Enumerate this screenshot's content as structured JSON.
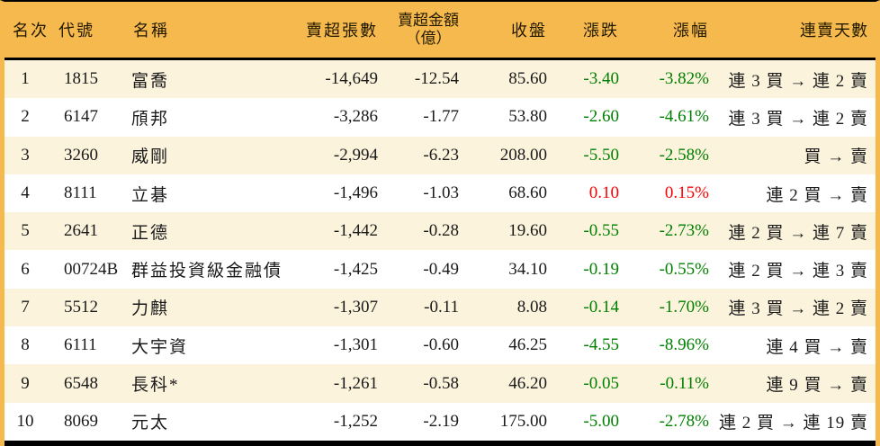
{
  "colors": {
    "accent": "#F6B94D",
    "row_alt": "#FCF3DC",
    "border": "#000000",
    "text": "#1a1a1a",
    "header_text": "#221a00",
    "down": "#008000",
    "up": "#ff0000"
  },
  "table": {
    "columns": [
      {
        "key": "rank",
        "label": "名次"
      },
      {
        "key": "code",
        "label": "代號"
      },
      {
        "key": "name",
        "label": "名稱"
      },
      {
        "key": "vol",
        "label": "賣超張數"
      },
      {
        "key": "amt",
        "label": "賣超金額\n（億）"
      },
      {
        "key": "close",
        "label": "收盤"
      },
      {
        "key": "chg",
        "label": "漲跌"
      },
      {
        "key": "pct",
        "label": "漲幅"
      },
      {
        "key": "streak",
        "label": "連賣天數"
      }
    ],
    "rows": [
      {
        "rank": "1",
        "code": "1815",
        "name": "富喬",
        "vol": "-14,649",
        "amt": "-12.54",
        "close": "85.60",
        "chg": "-3.40",
        "pct": "-3.82%",
        "streak": "連 3 買 → 連 2 賣"
      },
      {
        "rank": "2",
        "code": "6147",
        "name": "頎邦",
        "vol": "-3,286",
        "amt": "-1.77",
        "close": "53.80",
        "chg": "-2.60",
        "pct": "-4.61%",
        "streak": "連 3 買 → 連 2 賣"
      },
      {
        "rank": "3",
        "code": "3260",
        "name": "威剛",
        "vol": "-2,994",
        "amt": "-6.23",
        "close": "208.00",
        "chg": "-5.50",
        "pct": "-2.58%",
        "streak": "買 → 賣"
      },
      {
        "rank": "4",
        "code": "8111",
        "name": "立碁",
        "vol": "-1,496",
        "amt": "-1.03",
        "close": "68.60",
        "chg": "0.10",
        "pct": "0.15%",
        "streak": "連 2 買 → 賣"
      },
      {
        "rank": "5",
        "code": "2641",
        "name": "正德",
        "vol": "-1,442",
        "amt": "-0.28",
        "close": "19.60",
        "chg": "-0.55",
        "pct": "-2.73%",
        "streak": "連 2 買 → 連 7 賣"
      },
      {
        "rank": "6",
        "code": "00724B",
        "name": "群益投資級金融債",
        "vol": "-1,425",
        "amt": "-0.49",
        "close": "34.10",
        "chg": "-0.19",
        "pct": "-0.55%",
        "streak": "連 2 買 → 連 3 賣"
      },
      {
        "rank": "7",
        "code": "5512",
        "name": "力麒",
        "vol": "-1,307",
        "amt": "-0.11",
        "close": "8.08",
        "chg": "-0.14",
        "pct": "-1.70%",
        "streak": "連 3 買 → 連 2 賣"
      },
      {
        "rank": "8",
        "code": "6111",
        "name": "大宇資",
        "vol": "-1,301",
        "amt": "-0.60",
        "close": "46.25",
        "chg": "-4.55",
        "pct": "-8.96%",
        "streak": "連 4 買 → 賣"
      },
      {
        "rank": "9",
        "code": "6548",
        "name": "長科*",
        "vol": "-1,261",
        "amt": "-0.58",
        "close": "46.20",
        "chg": "-0.05",
        "pct": "-0.11%",
        "streak": "連 9 買 → 賣"
      },
      {
        "rank": "10",
        "code": "8069",
        "name": "元太",
        "vol": "-1,252",
        "amt": "-2.19",
        "close": "175.00",
        "chg": "-5.00",
        "pct": "-2.78%",
        "streak": "連 2 買 → 連 19 賣"
      }
    ]
  }
}
